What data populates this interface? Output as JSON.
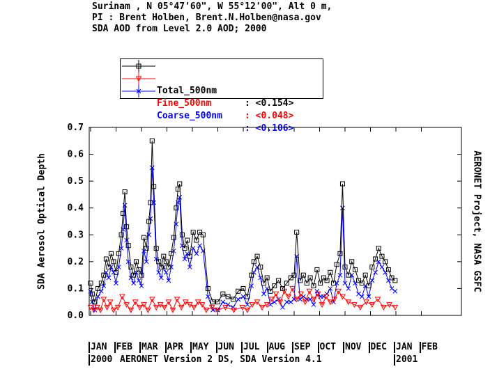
{
  "header": {
    "line1": "Surinam , N 05°47'60\", W 55°12'00\", Alt 0 m,",
    "line2": "PI : Brent Holben, Brent.N.Holben@nasa.gov",
    "line3": "SDA AOD from Level 2.0 AOD; 2000"
  },
  "legend": [
    {
      "name": "Total_500nm",
      "value": ": <0.154>",
      "color": "#000000",
      "marker": "square"
    },
    {
      "name": "Fine_500nm",
      "value": ": <0.048>",
      "color": "#ff0000",
      "marker": "triangle-down"
    },
    {
      "name": "Coarse_500nm",
      "value": ": <0.106>",
      "color": "#0000ff",
      "marker": "x"
    }
  ],
  "right_label": "AERONET Project, NASA GSFC",
  "version_text": "AERONET Version 2 DS, SDA Version 4.1",
  "chart_data": {
    "type": "line",
    "ylabel": "SDA Aerosol Optical Depth",
    "ylim": [
      0.0,
      0.7
    ],
    "yticks": [
      "0.0",
      "0.1",
      "0.2",
      "0.3",
      "0.4",
      "0.5",
      "0.6",
      "0.7"
    ],
    "x_tick_labels": [
      "JAN",
      "FEB",
      "MAR",
      "APR",
      "MAY",
      "JUN",
      "JUL",
      "AUG",
      "SEP",
      "OCT",
      "NOV",
      "DEC",
      "JAN",
      "FEB"
    ],
    "x_year_labels": [
      "2000",
      "2001"
    ],
    "grid": false,
    "series": [
      {
        "name": "Total_500nm",
        "color": "#000000",
        "marker": "square",
        "x": [
          "2000-01-01",
          "2000-01-03",
          "2000-01-06",
          "2000-01-10",
          "2000-01-14",
          "2000-01-17",
          "2000-01-20",
          "2000-01-23",
          "2000-01-26",
          "2000-01-29",
          "2000-02-01",
          "2000-02-04",
          "2000-02-07",
          "2000-02-09",
          "2000-02-11",
          "2000-02-13",
          "2000-02-15",
          "2000-02-18",
          "2000-02-21",
          "2000-02-24",
          "2000-02-27",
          "2000-03-01",
          "2000-03-04",
          "2000-03-07",
          "2000-03-10",
          "2000-03-12",
          "2000-03-14",
          "2000-03-16",
          "2000-03-19",
          "2000-03-22",
          "2000-03-25",
          "2000-03-28",
          "2000-03-31",
          "2000-04-03",
          "2000-04-06",
          "2000-04-09",
          "2000-04-12",
          "2000-04-14",
          "2000-04-16",
          "2000-04-19",
          "2000-04-22",
          "2000-04-25",
          "2000-04-28",
          "2000-05-02",
          "2000-05-06",
          "2000-05-10",
          "2000-05-14",
          "2000-05-20",
          "2000-05-26",
          "2000-06-01",
          "2000-06-07",
          "2000-06-13",
          "2000-06-19",
          "2000-06-25",
          "2000-07-01",
          "2000-07-06",
          "2000-07-11",
          "2000-07-14",
          "2000-07-18",
          "2000-07-22",
          "2000-07-26",
          "2000-07-30",
          "2000-08-03",
          "2000-08-08",
          "2000-08-13",
          "2000-08-18",
          "2000-08-23",
          "2000-08-28",
          "2000-09-01",
          "2000-09-04",
          "2000-09-08",
          "2000-09-12",
          "2000-09-16",
          "2000-09-20",
          "2000-09-24",
          "2000-09-28",
          "2000-10-02",
          "2000-10-06",
          "2000-10-10",
          "2000-10-14",
          "2000-10-18",
          "2000-10-22",
          "2000-10-26",
          "2000-10-29",
          "2000-11-01",
          "2000-11-05",
          "2000-11-09",
          "2000-11-13",
          "2000-11-17",
          "2000-11-21",
          "2000-11-25",
          "2000-11-29",
          "2000-12-03",
          "2000-12-07",
          "2000-12-11",
          "2000-12-15",
          "2000-12-19",
          "2000-12-23",
          "2000-12-27",
          "2000-12-31"
        ],
        "values": [
          0.12,
          0.08,
          0.05,
          0.1,
          0.12,
          0.15,
          0.21,
          0.18,
          0.23,
          0.2,
          0.16,
          0.23,
          0.3,
          0.38,
          0.46,
          0.33,
          0.26,
          0.18,
          0.15,
          0.2,
          0.17,
          0.15,
          0.29,
          0.25,
          0.35,
          0.42,
          0.65,
          0.48,
          0.25,
          0.2,
          0.18,
          0.22,
          0.2,
          0.18,
          0.23,
          0.29,
          0.4,
          0.47,
          0.49,
          0.3,
          0.25,
          0.28,
          0.22,
          0.31,
          0.28,
          0.31,
          0.3,
          0.1,
          0.05,
          0.05,
          0.08,
          0.07,
          0.06,
          0.09,
          0.1,
          0.07,
          0.15,
          0.2,
          0.22,
          0.18,
          0.12,
          0.14,
          0.09,
          0.11,
          0.13,
          0.1,
          0.12,
          0.14,
          0.15,
          0.31,
          0.13,
          0.15,
          0.12,
          0.14,
          0.11,
          0.17,
          0.12,
          0.14,
          0.13,
          0.16,
          0.12,
          0.19,
          0.23,
          0.49,
          0.18,
          0.15,
          0.2,
          0.17,
          0.13,
          0.12,
          0.15,
          0.11,
          0.18,
          0.21,
          0.25,
          0.22,
          0.2,
          0.17,
          0.14,
          0.13
        ]
      },
      {
        "name": "Fine_500nm",
        "color": "#ff0000",
        "marker": "triangle-down",
        "x": [
          "2000-01-01",
          "2000-01-05",
          "2000-01-09",
          "2000-01-13",
          "2000-01-17",
          "2000-01-21",
          "2000-01-25",
          "2000-01-29",
          "2000-02-03",
          "2000-02-08",
          "2000-02-13",
          "2000-02-18",
          "2000-02-23",
          "2000-02-28",
          "2000-03-04",
          "2000-03-09",
          "2000-03-14",
          "2000-03-19",
          "2000-03-24",
          "2000-03-29",
          "2000-04-03",
          "2000-04-08",
          "2000-04-13",
          "2000-04-18",
          "2000-04-23",
          "2000-04-28",
          "2000-05-03",
          "2000-05-08",
          "2000-05-13",
          "2000-05-18",
          "2000-05-25",
          "2000-06-01",
          "2000-06-10",
          "2000-06-20",
          "2000-06-30",
          "2000-07-06",
          "2000-07-12",
          "2000-07-18",
          "2000-07-24",
          "2000-07-30",
          "2000-08-05",
          "2000-08-10",
          "2000-08-15",
          "2000-08-20",
          "2000-08-25",
          "2000-08-30",
          "2000-09-04",
          "2000-09-09",
          "2000-09-14",
          "2000-09-19",
          "2000-09-24",
          "2000-09-29",
          "2000-10-04",
          "2000-10-09",
          "2000-10-14",
          "2000-10-19",
          "2000-10-24",
          "2000-10-29",
          "2000-11-05",
          "2000-11-12",
          "2000-11-19",
          "2000-11-26",
          "2000-12-03",
          "2000-12-10",
          "2000-12-17",
          "2000-12-24",
          "2000-12-31"
        ],
        "values": [
          0.03,
          0.02,
          0.03,
          0.02,
          0.06,
          0.03,
          0.05,
          0.02,
          0.03,
          0.07,
          0.04,
          0.02,
          0.05,
          0.03,
          0.04,
          0.02,
          0.06,
          0.03,
          0.04,
          0.03,
          0.05,
          0.02,
          0.06,
          0.03,
          0.05,
          0.04,
          0.03,
          0.05,
          0.04,
          0.02,
          0.03,
          0.02,
          0.03,
          0.02,
          0.03,
          0.02,
          0.04,
          0.05,
          0.03,
          0.04,
          0.06,
          0.08,
          0.05,
          0.09,
          0.07,
          0.1,
          0.06,
          0.08,
          0.05,
          0.09,
          0.06,
          0.08,
          0.04,
          0.07,
          0.05,
          0.06,
          0.09,
          0.07,
          0.05,
          0.04,
          0.03,
          0.05,
          0.04,
          0.06,
          0.03,
          0.04,
          0.03
        ]
      },
      {
        "name": "Coarse_500nm",
        "color": "#0000ff",
        "marker": "x",
        "x": [
          "2000-01-01",
          "2000-01-03",
          "2000-01-06",
          "2000-01-10",
          "2000-01-14",
          "2000-01-17",
          "2000-01-20",
          "2000-01-23",
          "2000-01-26",
          "2000-01-29",
          "2000-02-01",
          "2000-02-04",
          "2000-02-07",
          "2000-02-09",
          "2000-02-11",
          "2000-02-13",
          "2000-02-15",
          "2000-02-18",
          "2000-02-21",
          "2000-02-24",
          "2000-02-27",
          "2000-03-01",
          "2000-03-04",
          "2000-03-07",
          "2000-03-10",
          "2000-03-12",
          "2000-03-14",
          "2000-03-16",
          "2000-03-19",
          "2000-03-22",
          "2000-03-25",
          "2000-03-28",
          "2000-03-31",
          "2000-04-03",
          "2000-04-06",
          "2000-04-09",
          "2000-04-12",
          "2000-04-14",
          "2000-04-16",
          "2000-04-19",
          "2000-04-22",
          "2000-04-25",
          "2000-04-28",
          "2000-05-02",
          "2000-05-06",
          "2000-05-10",
          "2000-05-14",
          "2000-05-20",
          "2000-05-26",
          "2000-06-01",
          "2000-06-07",
          "2000-06-13",
          "2000-06-19",
          "2000-06-25",
          "2000-07-01",
          "2000-07-06",
          "2000-07-11",
          "2000-07-14",
          "2000-07-18",
          "2000-07-22",
          "2000-07-26",
          "2000-07-30",
          "2000-08-03",
          "2000-08-08",
          "2000-08-13",
          "2000-08-18",
          "2000-08-23",
          "2000-08-28",
          "2000-09-01",
          "2000-09-04",
          "2000-09-08",
          "2000-09-12",
          "2000-09-16",
          "2000-09-20",
          "2000-09-24",
          "2000-09-28",
          "2000-10-02",
          "2000-10-06",
          "2000-10-10",
          "2000-10-14",
          "2000-10-18",
          "2000-10-22",
          "2000-10-26",
          "2000-10-29",
          "2000-11-01",
          "2000-11-05",
          "2000-11-09",
          "2000-11-13",
          "2000-11-17",
          "2000-11-21",
          "2000-11-25",
          "2000-11-29",
          "2000-12-03",
          "2000-12-07",
          "2000-12-11",
          "2000-12-15",
          "2000-12-19",
          "2000-12-23",
          "2000-12-27",
          "2000-12-31"
        ],
        "values": [
          0.09,
          0.05,
          0.02,
          0.07,
          0.09,
          0.11,
          0.16,
          0.14,
          0.18,
          0.16,
          0.12,
          0.18,
          0.25,
          0.32,
          0.41,
          0.28,
          0.2,
          0.14,
          0.12,
          0.16,
          0.13,
          0.11,
          0.24,
          0.2,
          0.3,
          0.36,
          0.55,
          0.42,
          0.21,
          0.16,
          0.14,
          0.18,
          0.16,
          0.13,
          0.18,
          0.24,
          0.34,
          0.42,
          0.44,
          0.26,
          0.21,
          0.23,
          0.18,
          0.25,
          0.23,
          0.26,
          0.24,
          0.07,
          0.02,
          0.02,
          0.05,
          0.04,
          0.03,
          0.06,
          0.07,
          0.04,
          0.11,
          0.16,
          0.18,
          0.14,
          0.08,
          0.1,
          0.04,
          0.05,
          0.06,
          0.03,
          0.05,
          0.05,
          0.06,
          0.22,
          0.06,
          0.07,
          0.06,
          0.06,
          0.04,
          0.09,
          0.07,
          0.07,
          0.08,
          0.1,
          0.05,
          0.12,
          0.15,
          0.4,
          0.12,
          0.1,
          0.15,
          0.12,
          0.08,
          0.07,
          0.11,
          0.07,
          0.13,
          0.16,
          0.2,
          0.18,
          0.16,
          0.13,
          0.1,
          0.09
        ]
      }
    ]
  }
}
